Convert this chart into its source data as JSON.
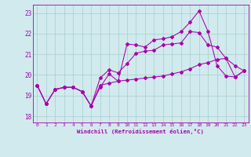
{
  "background_color": "#d0eaee",
  "grid_color": "#aacccc",
  "line_color": "#aa00aa",
  "xlabel": "Windchill (Refroidissement éolien,°C)",
  "xlim": [
    -0.5,
    23.5
  ],
  "ylim": [
    17.7,
    23.4
  ],
  "yticks": [
    18,
    19,
    20,
    21,
    22,
    23
  ],
  "xticks": [
    0,
    1,
    2,
    3,
    4,
    5,
    6,
    7,
    8,
    9,
    10,
    11,
    12,
    13,
    14,
    15,
    16,
    17,
    18,
    19,
    20,
    21,
    22,
    23
  ],
  "series": [
    {
      "x": [
        0,
        1,
        2,
        3,
        4,
        5,
        6,
        7,
        8,
        9,
        10,
        11,
        12,
        13,
        14,
        15,
        16,
        17,
        18,
        19,
        20,
        21,
        22,
        23
      ],
      "y": [
        19.5,
        18.6,
        19.3,
        19.4,
        19.4,
        19.2,
        18.5,
        19.4,
        20.05,
        19.7,
        21.5,
        21.45,
        21.35,
        21.7,
        21.75,
        21.85,
        22.1,
        22.55,
        23.1,
        22.1,
        20.45,
        19.95,
        19.9,
        20.2
      ]
    },
    {
      "x": [
        0,
        1,
        2,
        3,
        4,
        5,
        6,
        7,
        8,
        9,
        10,
        11,
        12,
        13,
        14,
        15,
        16,
        17,
        18,
        19,
        20,
        21,
        22,
        23
      ],
      "y": [
        19.5,
        18.6,
        19.3,
        19.4,
        19.4,
        19.2,
        18.5,
        19.85,
        20.25,
        20.1,
        20.55,
        21.05,
        21.15,
        21.2,
        21.45,
        21.5,
        21.55,
        22.1,
        22.05,
        21.45,
        21.35,
        20.8,
        20.45,
        20.2
      ]
    },
    {
      "x": [
        0,
        1,
        2,
        3,
        4,
        5,
        6,
        7,
        8,
        9,
        10,
        11,
        12,
        13,
        14,
        15,
        16,
        17,
        18,
        19,
        20,
        21,
        22,
        23
      ],
      "y": [
        19.5,
        18.6,
        19.3,
        19.4,
        19.4,
        19.2,
        18.5,
        19.5,
        19.6,
        19.7,
        19.75,
        19.8,
        19.85,
        19.9,
        19.95,
        20.05,
        20.15,
        20.3,
        20.5,
        20.6,
        20.75,
        20.8,
        19.9,
        20.2
      ]
    }
  ]
}
